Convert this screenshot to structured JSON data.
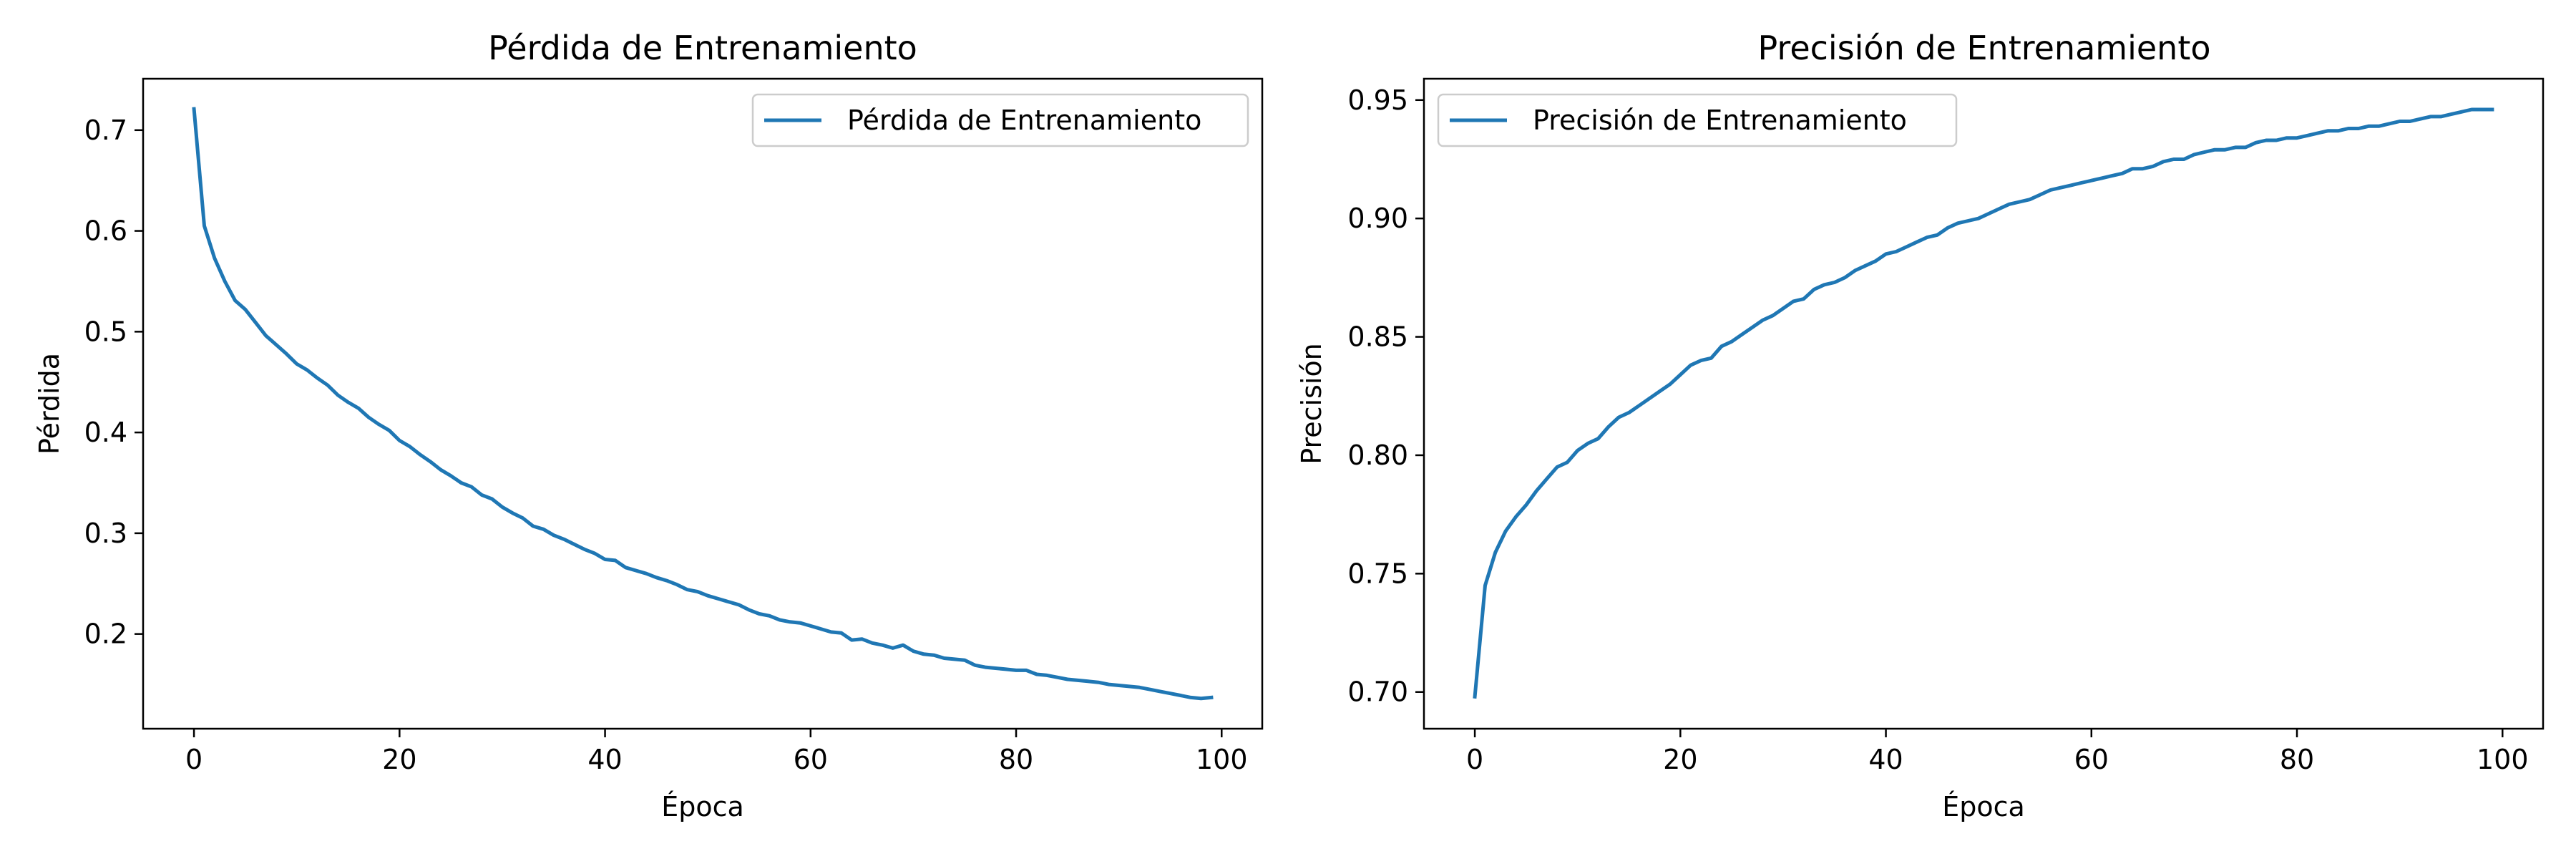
{
  "colors": {
    "series": "#1f77b4",
    "axes": "#000000",
    "legend_border": "#cccccc",
    "background": "#ffffff"
  },
  "chart_data": [
    {
      "type": "line",
      "title": "Pérdida de Entrenamiento",
      "xlabel": "Época",
      "ylabel": "Pérdida",
      "xlim": [
        -4.95,
        103.95
      ],
      "ylim": [
        0.106,
        0.751
      ],
      "xticks": [
        0,
        20,
        40,
        60,
        80,
        100
      ],
      "xtick_labels": [
        "0",
        "20",
        "40",
        "60",
        "80",
        "100"
      ],
      "yticks": [
        0.2,
        0.3,
        0.4,
        0.5,
        0.6,
        0.7
      ],
      "ytick_labels": [
        "0.2",
        "0.3",
        "0.4",
        "0.5",
        "0.6",
        "0.7"
      ],
      "grid": false,
      "legend": "upper right",
      "series": [
        {
          "name": "Pérdida de Entrenamiento",
          "x": [
            0,
            1,
            2,
            3,
            4,
            5,
            6,
            7,
            8,
            9,
            10,
            11,
            12,
            13,
            14,
            15,
            16,
            17,
            18,
            19,
            20,
            21,
            22,
            23,
            24,
            25,
            26,
            27,
            28,
            29,
            30,
            31,
            32,
            33,
            34,
            35,
            36,
            37,
            38,
            39,
            40,
            41,
            42,
            43,
            44,
            45,
            46,
            47,
            48,
            49,
            50,
            51,
            52,
            53,
            54,
            55,
            56,
            57,
            58,
            59,
            60,
            61,
            62,
            63,
            64,
            65,
            66,
            67,
            68,
            69,
            70,
            71,
            72,
            73,
            74,
            75,
            76,
            77,
            78,
            79,
            80,
            81,
            82,
            83,
            84,
            85,
            86,
            87,
            88,
            89,
            90,
            91,
            92,
            93,
            94,
            95,
            96,
            97,
            98,
            99
          ],
          "y": [
            0.721,
            0.605,
            0.573,
            0.55,
            0.531,
            0.522,
            0.509,
            0.496,
            0.487,
            0.478,
            0.468,
            0.462,
            0.454,
            0.447,
            0.437,
            0.43,
            0.424,
            0.415,
            0.408,
            0.402,
            0.392,
            0.386,
            0.378,
            0.371,
            0.363,
            0.357,
            0.35,
            0.346,
            0.338,
            0.334,
            0.326,
            0.32,
            0.315,
            0.307,
            0.304,
            0.298,
            0.294,
            0.289,
            0.284,
            0.28,
            0.274,
            0.273,
            0.266,
            0.263,
            0.26,
            0.256,
            0.253,
            0.249,
            0.244,
            0.242,
            0.238,
            0.235,
            0.232,
            0.229,
            0.224,
            0.22,
            0.218,
            0.214,
            0.212,
            0.211,
            0.208,
            0.205,
            0.202,
            0.201,
            0.194,
            0.195,
            0.191,
            0.189,
            0.186,
            0.189,
            0.183,
            0.18,
            0.179,
            0.176,
            0.175,
            0.174,
            0.169,
            0.167,
            0.166,
            0.165,
            0.164,
            0.164,
            0.16,
            0.159,
            0.157,
            0.155,
            0.154,
            0.153,
            0.152,
            0.15,
            0.149,
            0.148,
            0.147,
            0.145,
            0.143,
            0.141,
            0.139,
            0.137,
            0.136,
            0.137
          ]
        }
      ]
    },
    {
      "type": "line",
      "title": "Precisión de Entrenamiento",
      "xlabel": "Época",
      "ylabel": "Precisión",
      "xlim": [
        -4.95,
        103.95
      ],
      "ylim": [
        0.6845,
        0.959
      ],
      "xticks": [
        0,
        20,
        40,
        60,
        80,
        100
      ],
      "xtick_labels": [
        "0",
        "20",
        "40",
        "60",
        "80",
        "100"
      ],
      "yticks": [
        0.7,
        0.75,
        0.8,
        0.85,
        0.9,
        0.95
      ],
      "ytick_labels": [
        "0.70",
        "0.75",
        "0.80",
        "0.85",
        "0.90",
        "0.95"
      ],
      "grid": false,
      "legend": "upper left",
      "series": [
        {
          "name": "Precisión de Entrenamiento",
          "x": [
            0,
            1,
            2,
            3,
            4,
            5,
            6,
            7,
            8,
            9,
            10,
            11,
            12,
            13,
            14,
            15,
            16,
            17,
            18,
            19,
            20,
            21,
            22,
            23,
            24,
            25,
            26,
            27,
            28,
            29,
            30,
            31,
            32,
            33,
            34,
            35,
            36,
            37,
            38,
            39,
            40,
            41,
            42,
            43,
            44,
            45,
            46,
            47,
            48,
            49,
            50,
            51,
            52,
            53,
            54,
            55,
            56,
            57,
            58,
            59,
            60,
            61,
            62,
            63,
            64,
            65,
            66,
            67,
            68,
            69,
            70,
            71,
            72,
            73,
            74,
            75,
            76,
            77,
            78,
            79,
            80,
            81,
            82,
            83,
            84,
            85,
            86,
            87,
            88,
            89,
            90,
            91,
            92,
            93,
            94,
            95,
            96,
            97,
            98,
            99
          ],
          "y": [
            0.698,
            0.745,
            0.759,
            0.768,
            0.774,
            0.779,
            0.785,
            0.79,
            0.795,
            0.797,
            0.802,
            0.805,
            0.807,
            0.812,
            0.816,
            0.818,
            0.821,
            0.824,
            0.827,
            0.83,
            0.834,
            0.838,
            0.84,
            0.841,
            0.846,
            0.848,
            0.851,
            0.854,
            0.857,
            0.859,
            0.862,
            0.865,
            0.866,
            0.87,
            0.872,
            0.873,
            0.875,
            0.878,
            0.88,
            0.882,
            0.885,
            0.886,
            0.888,
            0.89,
            0.892,
            0.893,
            0.896,
            0.898,
            0.899,
            0.9,
            0.902,
            0.904,
            0.906,
            0.907,
            0.908,
            0.91,
            0.912,
            0.913,
            0.914,
            0.915,
            0.916,
            0.917,
            0.918,
            0.919,
            0.921,
            0.921,
            0.922,
            0.924,
            0.925,
            0.925,
            0.927,
            0.928,
            0.929,
            0.929,
            0.93,
            0.93,
            0.932,
            0.933,
            0.933,
            0.934,
            0.934,
            0.935,
            0.936,
            0.937,
            0.937,
            0.938,
            0.938,
            0.939,
            0.939,
            0.94,
            0.941,
            0.941,
            0.942,
            0.943,
            0.943,
            0.944,
            0.945,
            0.946,
            0.946,
            0.946
          ]
        }
      ]
    }
  ]
}
